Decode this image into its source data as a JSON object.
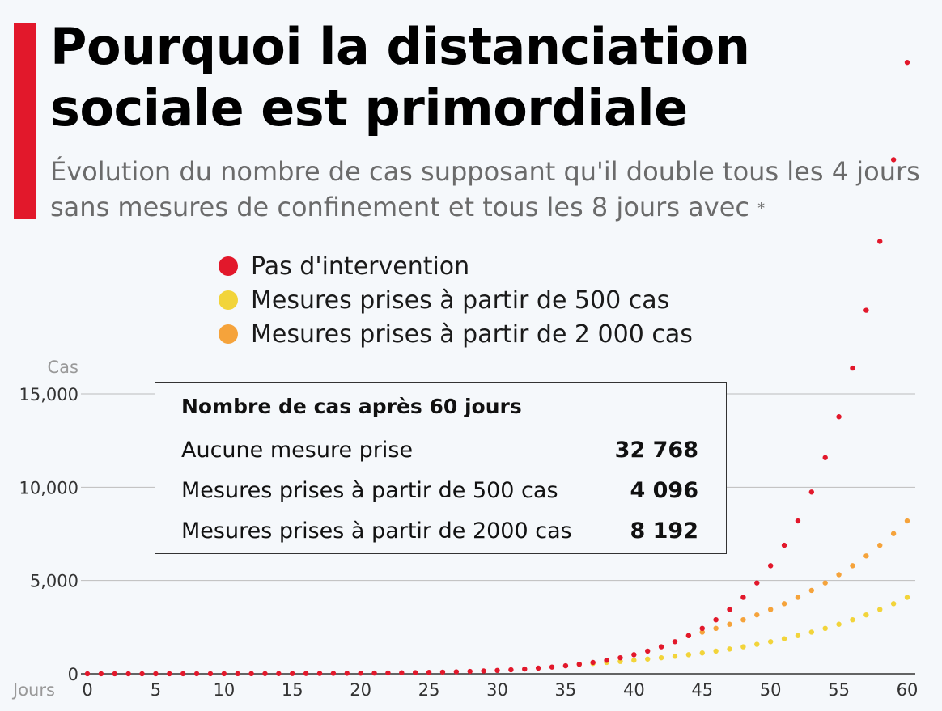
{
  "header": {
    "title": "Pourquoi la distanciation sociale est primordiale",
    "subtitle": "Évolution du nombre de cas supposant qu'il double tous les 4 jours sans mesures de confinement et tous les 8 jours avec",
    "note_marker": "*"
  },
  "legend": [
    {
      "label": "Pas d'intervention",
      "color": "#e2182b"
    },
    {
      "label": "Mesures prises à partir de 500 cas",
      "color": "#f2d43a"
    },
    {
      "label": "Mesures prises à partir de 2 000 cas",
      "color": "#f5a33b"
    }
  ],
  "infobox": {
    "title": "Nombre de cas après 60 jours",
    "rows": [
      {
        "label": "Aucune mesure prise",
        "value": "32 768"
      },
      {
        "label": "Mesures prises à partir de 500 cas",
        "value": "4 096"
      },
      {
        "label": "Mesures prises à partir de 2000 cas",
        "value": "8 192"
      }
    ]
  },
  "chart_data": {
    "type": "scatter",
    "xlabel": "Jours",
    "ylabel": "Cas",
    "xlim": [
      0,
      60
    ],
    "ylim": [
      0,
      15000
    ],
    "x_ticks": [
      0,
      5,
      10,
      15,
      20,
      25,
      30,
      35,
      40,
      45,
      50,
      55,
      60
    ],
    "y_ticks": [
      {
        "value": 0,
        "label": "0"
      },
      {
        "value": 5000,
        "label": "5,000"
      },
      {
        "value": 10000,
        "label": "10,000"
      },
      {
        "value": 15000,
        "label": "15,000"
      }
    ],
    "grid": true,
    "series": [
      {
        "name": "Pas d'intervention",
        "color": "#e2182b",
        "start": 1,
        "doubling_days": 4,
        "switch_at": null
      },
      {
        "name": "Mesures prises à partir de 500 cas",
        "color": "#f2d43a",
        "start": 1,
        "doubling_days": 4,
        "switch_at": 512,
        "doubling_after": 8
      },
      {
        "name": "Mesures prises à partir de 2 000 cas",
        "color": "#f5a33b",
        "start": 1,
        "doubling_days": 4,
        "switch_at": 2048,
        "doubling_after": 8
      }
    ],
    "final_values": {
      "Pas d'intervention": 32768,
      "Mesures prises à partir de 500 cas": 4096,
      "Mesures prises à partir de 2 000 cas": 8192
    }
  }
}
